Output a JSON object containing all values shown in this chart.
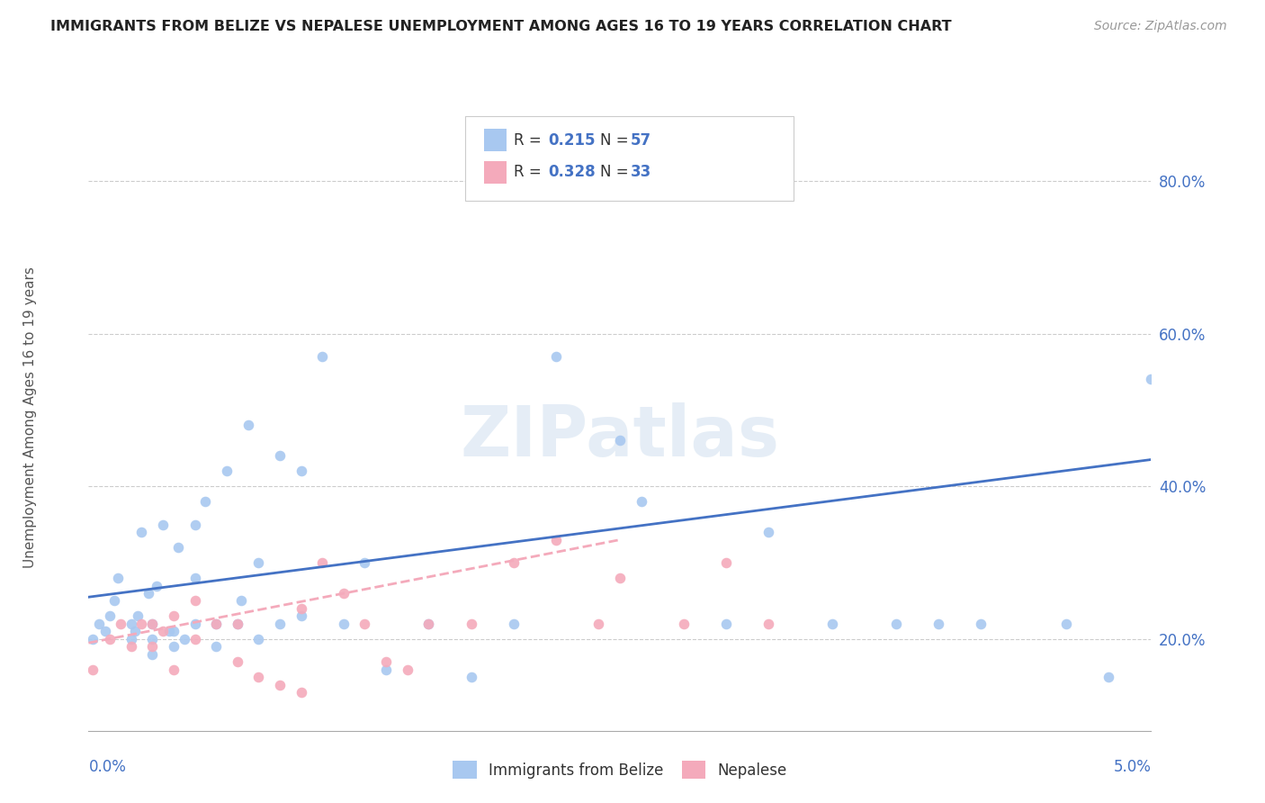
{
  "title": "IMMIGRANTS FROM BELIZE VS NEPALESE UNEMPLOYMENT AMONG AGES 16 TO 19 YEARS CORRELATION CHART",
  "source": "Source: ZipAtlas.com",
  "ylabel": "Unemployment Among Ages 16 to 19 years",
  "ytick_vals": [
    0.2,
    0.4,
    0.6,
    0.8
  ],
  "ytick_labels": [
    "20.0%",
    "40.0%",
    "60.0%",
    "80.0%"
  ],
  "xlim": [
    0.0,
    0.05
  ],
  "ylim": [
    0.08,
    0.9
  ],
  "legend_R1": "0.215",
  "legend_N1": "57",
  "legend_R2": "0.328",
  "legend_N2": "33",
  "color_blue": "#A8C8F0",
  "color_pink": "#F4AABB",
  "color_blue_dark": "#4472C4",
  "color_line_blue": "#4472C4",
  "color_line_pink": "#F4AABB",
  "watermark": "ZIPatlas",
  "blue_scatter_x": [
    0.0002,
    0.0005,
    0.0008,
    0.001,
    0.0012,
    0.0014,
    0.002,
    0.002,
    0.0022,
    0.0023,
    0.0025,
    0.0028,
    0.003,
    0.003,
    0.003,
    0.0032,
    0.0035,
    0.0038,
    0.004,
    0.004,
    0.0042,
    0.0045,
    0.005,
    0.005,
    0.005,
    0.0055,
    0.006,
    0.006,
    0.0065,
    0.007,
    0.0072,
    0.0075,
    0.008,
    0.008,
    0.009,
    0.009,
    0.01,
    0.01,
    0.011,
    0.012,
    0.013,
    0.014,
    0.016,
    0.018,
    0.02,
    0.022,
    0.025,
    0.026,
    0.03,
    0.032,
    0.035,
    0.038,
    0.04,
    0.042,
    0.046,
    0.048,
    0.05
  ],
  "blue_scatter_y": [
    0.2,
    0.22,
    0.21,
    0.23,
    0.25,
    0.28,
    0.2,
    0.22,
    0.21,
    0.23,
    0.34,
    0.26,
    0.18,
    0.2,
    0.22,
    0.27,
    0.35,
    0.21,
    0.19,
    0.21,
    0.32,
    0.2,
    0.22,
    0.28,
    0.35,
    0.38,
    0.19,
    0.22,
    0.42,
    0.22,
    0.25,
    0.48,
    0.2,
    0.3,
    0.22,
    0.44,
    0.23,
    0.42,
    0.57,
    0.22,
    0.3,
    0.16,
    0.22,
    0.15,
    0.22,
    0.57,
    0.46,
    0.38,
    0.22,
    0.34,
    0.22,
    0.22,
    0.22,
    0.22,
    0.22,
    0.15,
    0.54
  ],
  "pink_scatter_x": [
    0.0002,
    0.001,
    0.0015,
    0.002,
    0.0025,
    0.003,
    0.003,
    0.0035,
    0.004,
    0.004,
    0.005,
    0.005,
    0.006,
    0.007,
    0.007,
    0.008,
    0.009,
    0.01,
    0.01,
    0.011,
    0.012,
    0.013,
    0.014,
    0.015,
    0.016,
    0.018,
    0.02,
    0.022,
    0.024,
    0.025,
    0.028,
    0.03,
    0.032
  ],
  "pink_scatter_y": [
    0.16,
    0.2,
    0.22,
    0.19,
    0.22,
    0.19,
    0.22,
    0.21,
    0.16,
    0.23,
    0.2,
    0.25,
    0.22,
    0.17,
    0.22,
    0.15,
    0.14,
    0.13,
    0.24,
    0.3,
    0.26,
    0.22,
    0.17,
    0.16,
    0.22,
    0.22,
    0.3,
    0.33,
    0.22,
    0.28,
    0.22,
    0.3,
    0.22
  ],
  "blue_line_x": [
    0.0,
    0.05
  ],
  "blue_line_y": [
    0.255,
    0.435
  ],
  "pink_line_x": [
    0.0,
    0.025
  ],
  "pink_line_y": [
    0.195,
    0.33
  ]
}
